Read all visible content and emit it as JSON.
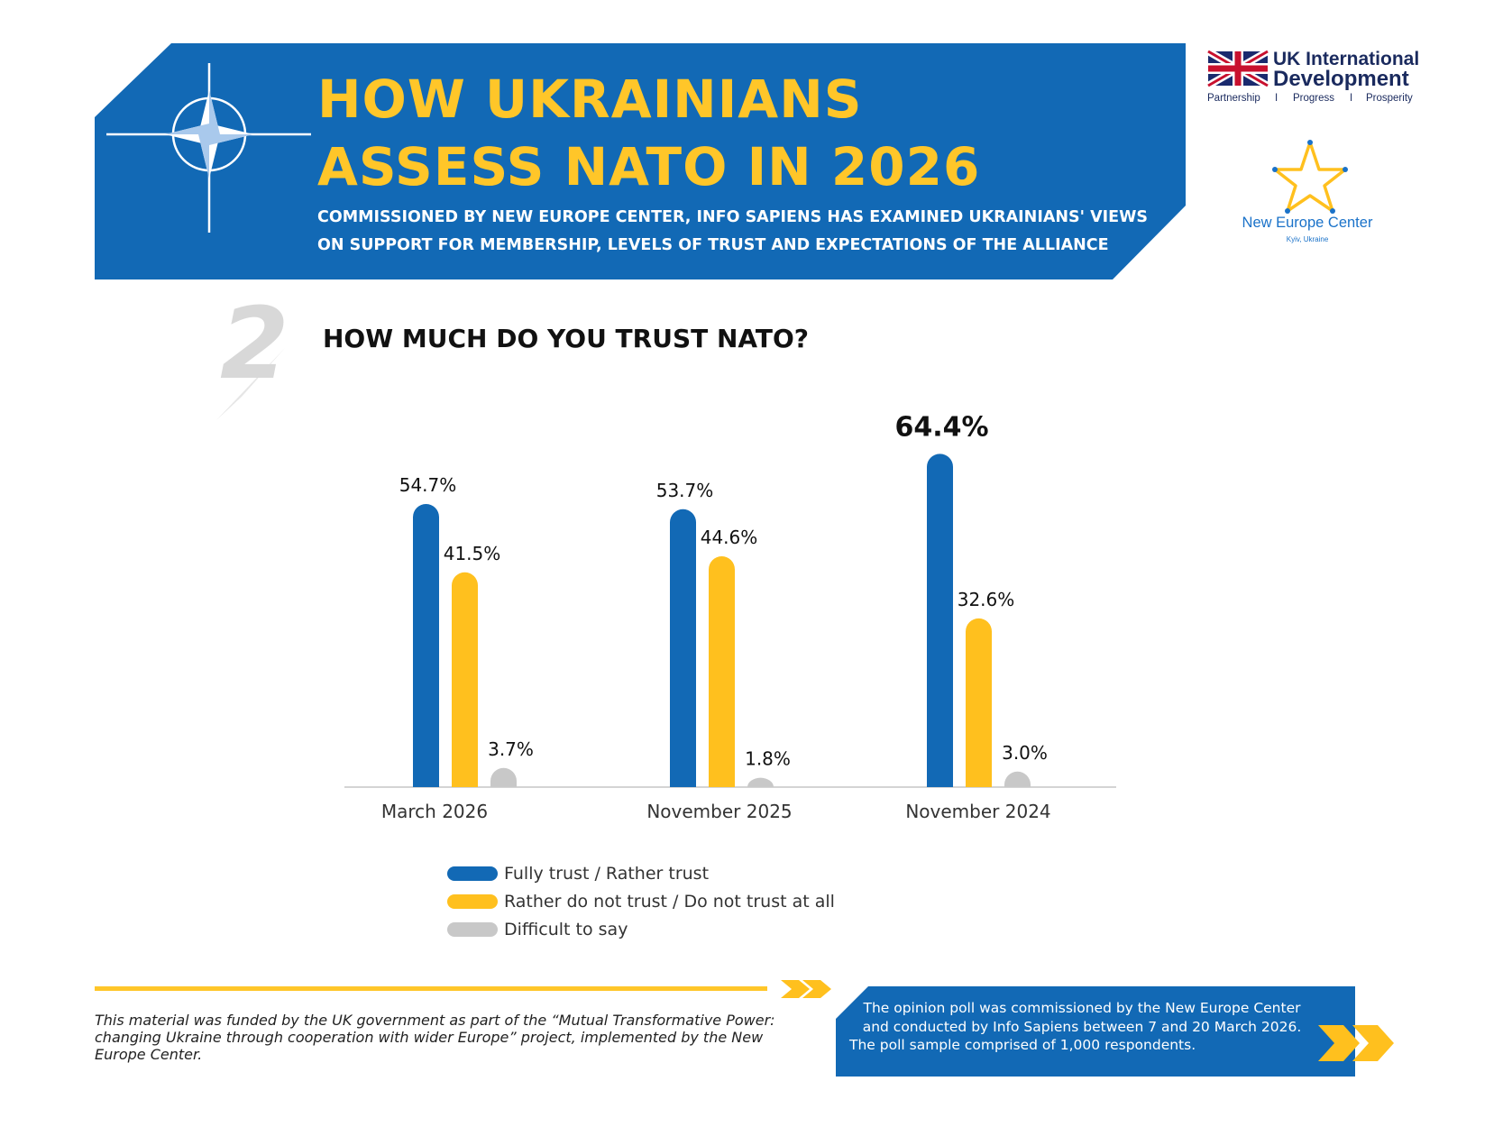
{
  "header": {
    "title_line1": "HOW UKRAINIANS",
    "title_line2": "ASSESS NATO IN 2026",
    "subtitle_line1": "COMMISSIONED BY NEW EUROPE CENTER, INFO SAPIENS HAS EXAMINED UKRAINIANS' VIEWS",
    "subtitle_line2": "ON SUPPORT FOR MEMBERSHIP, LEVELS OF TRUST AND EXPECTATIONS OF THE ALLIANCE",
    "icon": "nato-compass-star-icon"
  },
  "logos": {
    "uk_international_development": {
      "line1": "UK International",
      "line2": "Development",
      "tag1": "Partnership",
      "sep1": "I",
      "tag2": "Progress",
      "sep2": "I",
      "tag3": "Prosperity",
      "icon": "union-jack-flag-icon"
    },
    "new_europe_center": {
      "name": "New Europe Center",
      "location": "Kyiv, Ukraine",
      "icon": "star-logo-icon"
    }
  },
  "section": {
    "number": "2",
    "question": "HOW MUCH DO YOU TRUST NATO?"
  },
  "colors": {
    "blue": "#1269B5",
    "yellow": "#FFC01E",
    "gray": "#C8C8C8",
    "header_blue": "#1269B5",
    "title_yellow": "#FFC629"
  },
  "chart_data": {
    "type": "bar",
    "categories": [
      "March 2026",
      "November 2025",
      "November 2024"
    ],
    "series": [
      {
        "name": "Fully trust / Rather trust",
        "color": "#1269B5",
        "values": [
          54.7,
          53.7,
          64.4
        ],
        "labels": [
          "54.7%",
          "53.7%",
          "64.4%"
        ]
      },
      {
        "name": "Rather do not trust / Do not trust at all",
        "color": "#FFC01E",
        "values": [
          41.5,
          44.6,
          32.6
        ],
        "labels": [
          "41.5%",
          "44.6%",
          "32.6%"
        ]
      },
      {
        "name": "Difficult to say",
        "color": "#C8C8C8",
        "values": [
          3.7,
          1.8,
          3.0
        ],
        "labels": [
          "3.7%",
          "1.8%",
          "3.0%"
        ]
      }
    ],
    "title": "HOW MUCH DO YOU TRUST NATO?",
    "xlabel": "",
    "ylabel": "",
    "ylim": [
      0,
      70
    ],
    "grid": false,
    "legend": "bottom"
  },
  "footer": {
    "funding_note": "This material was funded by the UK government as part of the “Mutual Transformative Power: changing Ukraine through cooperation with wider Europe” project, implemented by the New Europe Center.",
    "poll_line1": "The opinion poll was commissioned by the New Europe Center",
    "poll_line2": "and conducted by Info Sapiens between 7 and 20 March 2026.",
    "poll_line3": "The poll sample comprised of 1,000 respondents."
  }
}
